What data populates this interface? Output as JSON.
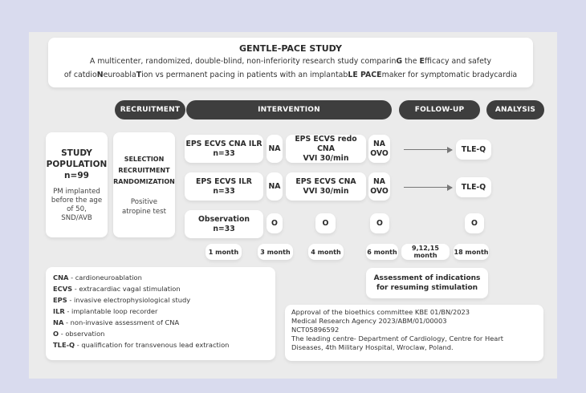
{
  "header": {
    "title": "GENTLE-PACE STUDY",
    "subtitle_line1": {
      "parts": [
        {
          "t": "A multicenter, randomized, double-blind, non-inferiority research study comparin",
          "b": false
        },
        {
          "t": "G",
          "b": true
        },
        {
          "t": " the ",
          "b": false
        },
        {
          "t": "E",
          "b": true
        },
        {
          "t": "fficacy and safety",
          "b": false
        }
      ]
    },
    "subtitle_line2": {
      "parts": [
        {
          "t": "of catdio",
          "b": false
        },
        {
          "t": "N",
          "b": true
        },
        {
          "t": "euroabla",
          "b": false
        },
        {
          "t": "T",
          "b": true
        },
        {
          "t": "ion vs permanent pacing in patients with an implantab",
          "b": false
        },
        {
          "t": "LE PACE",
          "b": true
        },
        {
          "t": "maker for symptomatic bradycardia",
          "b": false
        }
      ]
    }
  },
  "phases": {
    "recruitment": "RECRUITMENT",
    "intervention": "INTERVENTION",
    "followup": "FOLLOW-UP",
    "analysis": "ANALYSIS"
  },
  "population": {
    "title1": "STUDY",
    "title2": "POPULATION",
    "n": "n=99",
    "desc1": "PM implanted",
    "desc2": "before the age",
    "desc3": "of 50,",
    "desc4": "SND/AVB"
  },
  "selection": {
    "l1": "SELECTION",
    "l2": "RECRUITMENT",
    "l3": "RANDOMIZATION",
    "t1": "Positive",
    "t2": "atropine test"
  },
  "rows": [
    {
      "arm1": "EPS ECVS CNA ILR",
      "arm2": "n=33",
      "c3": "NA",
      "c4a": "EPS ECVS redo CNA",
      "c4b": "VVI 30/min",
      "c5a": "NA",
      "c5b": "OVO",
      "end": "TLE-Q"
    },
    {
      "arm1": "EPS ECVS ILR",
      "arm2": "n=33",
      "c3": "NA",
      "c4a": "EPS ECVS CNA",
      "c4b": "VVI 30/min",
      "c5a": "NA",
      "c5b": "OVO",
      "end": "TLE-Q"
    },
    {
      "arm1": "Observation",
      "arm2": "n=33",
      "c3": "O",
      "c4a": "O",
      "c4b": "",
      "c5a": "O",
      "c5b": "",
      "end": "O"
    }
  ],
  "timeline": [
    "1 month",
    "3 month",
    "4 month",
    "6 month",
    "9,12,15 month",
    "18 month"
  ],
  "assessment": {
    "l1": "Assessment of indications",
    "l2": "for resuming stimulation"
  },
  "legend": [
    {
      "abbr": "CNA",
      "desc": " - cardioneuroablation"
    },
    {
      "abbr": "ECVS",
      "desc": " - extracardiac vagal stimulation"
    },
    {
      "abbr": "EPS",
      "desc": " - invasive electrophysiological study"
    },
    {
      "abbr": "ILR",
      "desc": " - implantable loop recorder"
    },
    {
      "abbr": "NA",
      "desc": " - non-invasive assessment of CNA"
    },
    {
      "abbr": "O",
      "desc": " - observation"
    },
    {
      "abbr": "TLE-Q",
      "desc": " - qualification for transvenous lead extraction"
    }
  ],
  "approval": {
    "l1": "Approval of the bioethics committee KBE 01/BN/2023",
    "l2": "Medical Research Agency 2023/ABM/01/00003",
    "l3": "NCT05896592",
    "l4": "The leading centre- Department of Cardiology, Centre for Heart",
    "l5": "Diseases, 4th Military Hospital, Wroclaw, Poland."
  },
  "colors": {
    "background": "#d9dbee",
    "panel": "#ebebeb",
    "pill": "#3e3e3e",
    "box": "#ffffff"
  }
}
